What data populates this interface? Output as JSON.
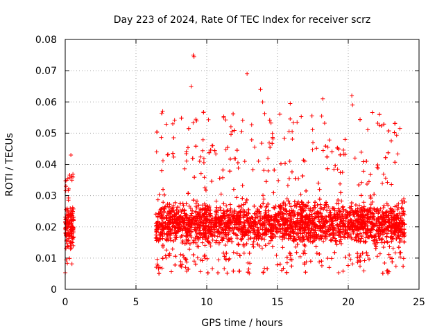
{
  "chart_data": {
    "type": "scatter",
    "title": "Day 223 of 2024, Rate Of TEC Index for receiver scrz",
    "xlabel": "GPS time / hours",
    "ylabel": "ROTI / TECUs",
    "xlim": [
      0,
      25
    ],
    "ylim": [
      0,
      0.08
    ],
    "x_ticks": [
      "0",
      "5",
      "10",
      "15",
      "20",
      "25"
    ],
    "y_ticks": [
      "0",
      "0.01",
      "0.02",
      "0.03",
      "0.04",
      "0.05",
      "0.06",
      "0.07",
      "0.08"
    ],
    "grid": true,
    "marker": "+",
    "marker_color": "#ff0000",
    "segments": [
      {
        "x_start": 0.0,
        "x_end": 0.6,
        "typical_low": 0.011,
        "typical_high": 0.029,
        "max": 0.043,
        "min": 0.005
      },
      {
        "x_start": 6.4,
        "x_end": 24.0,
        "typical_low": 0.012,
        "typical_high": 0.03,
        "max": 0.075,
        "min": 0.005
      }
    ],
    "notable_points": [
      {
        "x": 9.05,
        "y": 0.075
      },
      {
        "x": 9.1,
        "y": 0.0745
      },
      {
        "x": 12.85,
        "y": 0.069
      },
      {
        "x": 8.9,
        "y": 0.065
      },
      {
        "x": 13.8,
        "y": 0.064
      },
      {
        "x": 20.25,
        "y": 0.062
      },
      {
        "x": 18.2,
        "y": 0.061
      },
      {
        "x": 15.9,
        "y": 0.0595
      },
      {
        "x": 20.3,
        "y": 0.059
      },
      {
        "x": 13.95,
        "y": 0.06
      },
      {
        "x": 22.2,
        "y": 0.056
      },
      {
        "x": 11.2,
        "y": 0.055
      },
      {
        "x": 7.6,
        "y": 0.053
      },
      {
        "x": 23.65,
        "y": 0.0515
      },
      {
        "x": 0.4,
        "y": 0.043
      },
      {
        "x": 0.05,
        "y": 0.033
      }
    ]
  }
}
